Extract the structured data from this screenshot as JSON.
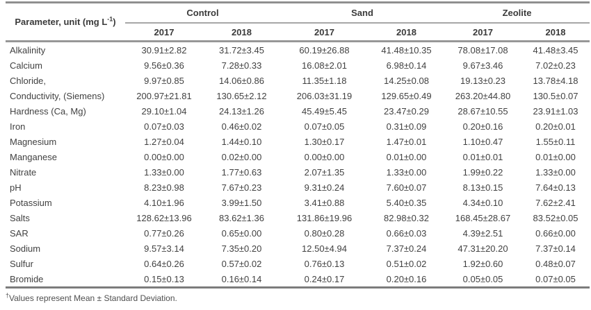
{
  "table": {
    "parameter_header": {
      "prefix": "Parameter, unit (mg L",
      "superscript": "-1",
      "suffix": ")"
    },
    "groups": [
      {
        "label": "Control",
        "years": [
          "2017",
          "2018"
        ]
      },
      {
        "label": "Sand",
        "years": [
          "2017",
          "2018"
        ]
      },
      {
        "label": "Zeolite",
        "years": [
          "2017",
          "2018"
        ]
      }
    ],
    "rows": [
      {
        "parameter": "Alkalinity",
        "values": [
          "30.91±2.82",
          "31.72±3.45",
          "60.19±26.88",
          "41.48±10.35",
          "78.08±17.08",
          "41.48±3.45"
        ]
      },
      {
        "parameter": "Calcium",
        "values": [
          "9.56±0.36",
          "7.28±0.33",
          "16.08±2.01",
          "6.98±0.14",
          "9.67±3.46",
          "7.02±0.23"
        ]
      },
      {
        "parameter": "Chloride,",
        "values": [
          "9.97±0.85",
          "14.06±0.86",
          "11.35±1.18",
          "14.25±0.08",
          "19.13±0.23",
          "13.78±4.18"
        ]
      },
      {
        "parameter": "Conductivity, (Siemens)",
        "values": [
          "200.97±21.81",
          "130.65±2.12",
          "206.03±31.19",
          "129.65±0.49",
          "263.20±44.80",
          "130.5±0.07"
        ]
      },
      {
        "parameter": "Hardness (Ca, Mg)",
        "values": [
          "29.10±1.04",
          "24.13±1.26",
          "45.49±5.45",
          "23.47±0.29",
          "28.67±10.55",
          "23.91±1.03"
        ]
      },
      {
        "parameter": "Iron",
        "values": [
          "0.07±0.03",
          "0.46±0.02",
          "0.07±0.05",
          "0.31±0.09",
          "0.20±0.16",
          "0.20±0.01"
        ]
      },
      {
        "parameter": "Magnesium",
        "values": [
          "1.27±0.04",
          "1.44±0.10",
          "1.30±0.17",
          "1.47±0.01",
          "1.10±0.47",
          "1.55±0.11"
        ]
      },
      {
        "parameter": "Manganese",
        "values": [
          "0.00±0.00",
          "0.02±0.00",
          "0.00±0.00",
          "0.01±0.00",
          "0.01±0.01",
          "0.01±0.00"
        ]
      },
      {
        "parameter": "Nitrate",
        "values": [
          "1.33±0.00",
          "1.77±0.63",
          "2.07±1.35",
          "1.33±0.00",
          "1.99±0.22",
          "1.33±0.00"
        ]
      },
      {
        "parameter": "pH",
        "values": [
          "8.23±0.98",
          "7.67±0.23",
          "9.31±0.24",
          "7.60±0.07",
          "8.13±0.15",
          "7.64±0.13"
        ]
      },
      {
        "parameter": "Potassium",
        "values": [
          "4.10±1.96",
          "3.99±1.50",
          "3.41±0.88",
          "5.40±0.35",
          "4.34±0.10",
          "7.62±2.41"
        ]
      },
      {
        "parameter": "Salts",
        "values": [
          "128.62±13.96",
          "83.62±1.36",
          "131.86±19.96",
          "82.98±0.32",
          "168.45±28.67",
          "83.52±0.05"
        ]
      },
      {
        "parameter": "SAR",
        "values": [
          "0.77±0.26",
          "0.65±0.00",
          "0.80±0.28",
          "0.66±0.03",
          "4.39±2.51",
          "0.66±0.00"
        ]
      },
      {
        "parameter": "Sodium",
        "values": [
          "9.57±3.14",
          "7.35±0.20",
          "12.50±4.94",
          "7.37±0.24",
          "47.31±20.20",
          "7.37±0.14"
        ]
      },
      {
        "parameter": "Sulfur",
        "values": [
          "0.64±0.26",
          "0.57±0.02",
          "0.76±0.13",
          "0.51±0.02",
          "1.92±0.60",
          "0.48±0.07"
        ]
      },
      {
        "parameter": "Bromide",
        "values": [
          "0.15±0.13",
          "0.16±0.14",
          "0.24±0.17",
          "0.20±0.16",
          "0.05±0.05",
          "0.07±0.05"
        ]
      }
    ]
  },
  "footnote": {
    "marker": "†",
    "text": "Values represent Mean ± Standard Deviation."
  },
  "colors": {
    "text": "#414141",
    "header_text": "#3a3a3a",
    "rule_light": "#a6a6a6",
    "rule_medium": "#979797",
    "rule_top": "#8f8f8f",
    "rule_bottom": "#7c7c7c",
    "background": "#ffffff"
  }
}
